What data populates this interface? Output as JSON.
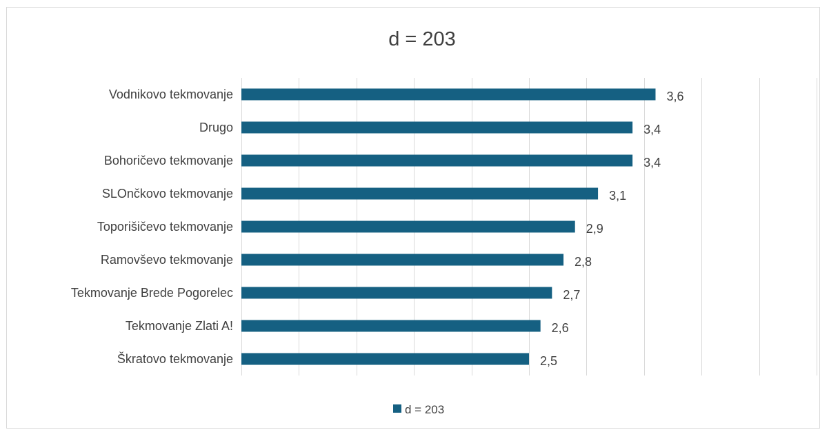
{
  "chart_data": {
    "type": "bar",
    "orientation": "horizontal",
    "title": "d = 203",
    "categories": [
      "Vodnikovo tekmovanje",
      "Drugo",
      "Bohoričevo tekmovanje",
      "SLOnčkovo tekmovanje",
      "Toporišičevo tekmovanje",
      "Ramovševo tekmovanje",
      "Tekmovanje Brede Pogorelec",
      "Tekmovanje Zlati A!",
      "Škratovo tekmovanje"
    ],
    "series": [
      {
        "name": "d = 203",
        "values": [
          3.6,
          3.4,
          3.4,
          3.1,
          2.9,
          2.8,
          2.7,
          2.6,
          2.5
        ],
        "value_labels": [
          "3,6",
          "3,4",
          "3,4",
          "3,1",
          "2,9",
          "2,8",
          "2,7",
          "2,6",
          "2,5"
        ],
        "color": "#156082"
      }
    ],
    "xlim": [
      0,
      5
    ],
    "gridlines_vertical": true,
    "legend_position": "bottom"
  }
}
